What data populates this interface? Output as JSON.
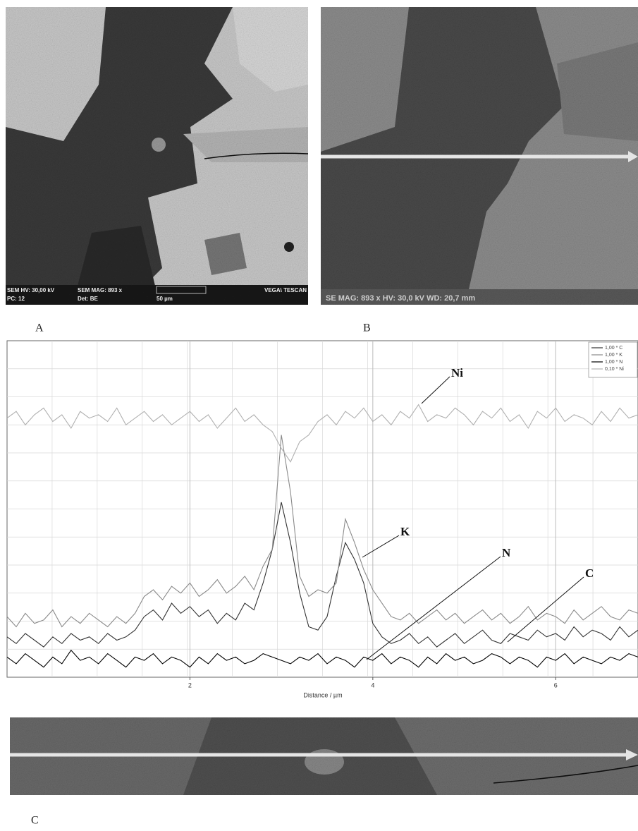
{
  "panels": {
    "a": {
      "label": "A",
      "info": [
        "SEM HV: 30,00 kV",
        "SEM MAG: 893 x",
        "VEGA\\ TESCAN",
        "PC: 12",
        "Det: BE",
        "50 µm"
      ]
    },
    "b": {
      "label": "B",
      "info": [
        "SE MAG: 893 x HV: 30,0 kV WD: 20,7 mm"
      ]
    },
    "c": {
      "label": "C"
    }
  },
  "chart_data": {
    "type": "line",
    "x_label": "Distance / µm",
    "xlim": [
      0,
      6.9
    ],
    "xticks": [
      2,
      4,
      6
    ],
    "ylim": [
      0,
      100
    ],
    "grid": true,
    "legend": "top-right",
    "annotations": [
      "Ni",
      "K",
      "N",
      "C"
    ],
    "x": [
      0,
      0.1,
      0.2,
      0.3,
      0.4,
      0.5,
      0.6,
      0.7,
      0.8,
      0.9,
      1,
      1.1,
      1.2,
      1.3,
      1.4,
      1.5,
      1.6,
      1.7,
      1.8,
      1.9,
      2,
      2.1,
      2.2,
      2.3,
      2.4,
      2.5,
      2.6,
      2.7,
      2.8,
      2.9,
      3,
      3.1,
      3.2,
      3.3,
      3.4,
      3.5,
      3.6,
      3.7,
      3.8,
      3.9,
      4,
      4.1,
      4.2,
      4.3,
      4.4,
      4.5,
      4.6,
      4.7,
      4.8,
      4.9,
      5,
      5.1,
      5.2,
      5.3,
      5.4,
      5.5,
      5.6,
      5.7,
      5.8,
      5.9,
      6,
      6.1,
      6.2,
      6.3,
      6.4,
      6.5,
      6.6,
      6.7,
      6.8,
      6.9
    ],
    "series": [
      {
        "name": "1,00 * C",
        "color": "#333333",
        "values": [
          12,
          10,
          13,
          11,
          9,
          12,
          10,
          13,
          11,
          12,
          10,
          13,
          11,
          12,
          14,
          18,
          20,
          17,
          22,
          19,
          21,
          18,
          20,
          16,
          19,
          17,
          22,
          20,
          28,
          38,
          52,
          40,
          25,
          15,
          14,
          18,
          30,
          40,
          35,
          28,
          16,
          12,
          10,
          11,
          13,
          10,
          12,
          9,
          11,
          13,
          10,
          12,
          14,
          11,
          10,
          13,
          12,
          11,
          14,
          12,
          13,
          11,
          15,
          12,
          14,
          13,
          11,
          15,
          12,
          14
        ]
      },
      {
        "name": "1,00 * K",
        "color": "#8a8a8a",
        "values": [
          18,
          15,
          19,
          16,
          17,
          20,
          15,
          18,
          16,
          19,
          17,
          15,
          18,
          16,
          19,
          24,
          26,
          23,
          27,
          25,
          28,
          24,
          26,
          29,
          25,
          27,
          30,
          26,
          33,
          38,
          72,
          55,
          30,
          24,
          26,
          25,
          28,
          47,
          40,
          32,
          26,
          22,
          18,
          17,
          19,
          16,
          18,
          20,
          17,
          19,
          16,
          18,
          20,
          17,
          19,
          16,
          18,
          21,
          17,
          19,
          18,
          16,
          20,
          17,
          19,
          21,
          18,
          17,
          20,
          19
        ]
      },
      {
        "name": "1,00 * N",
        "color": "#000000",
        "values": [
          6,
          4,
          7,
          5,
          3,
          6,
          4,
          8,
          5,
          6,
          4,
          7,
          5,
          3,
          6,
          5,
          7,
          4,
          6,
          5,
          3,
          6,
          4,
          7,
          5,
          6,
          4,
          5,
          7,
          6,
          5,
          4,
          6,
          5,
          7,
          4,
          6,
          5,
          3,
          6,
          5,
          7,
          4,
          6,
          5,
          3,
          6,
          4,
          7,
          5,
          6,
          4,
          5,
          7,
          6,
          4,
          6,
          5,
          3,
          6,
          5,
          7,
          4,
          6,
          5,
          4,
          6,
          5,
          7,
          6
        ]
      },
      {
        "name": "0,10 * Ni",
        "color": "#b0b0b0",
        "values": [
          77,
          79,
          75,
          78,
          80,
          76,
          78,
          74,
          79,
          77,
          78,
          76,
          80,
          75,
          77,
          79,
          76,
          78,
          75,
          77,
          79,
          76,
          78,
          74,
          77,
          80,
          76,
          78,
          75,
          73,
          68,
          64,
          70,
          72,
          76,
          78,
          75,
          79,
          77,
          80,
          76,
          78,
          75,
          79,
          77,
          81,
          76,
          78,
          77,
          80,
          78,
          75,
          79,
          77,
          80,
          76,
          78,
          74,
          79,
          77,
          80,
          76,
          78,
          77,
          75,
          79,
          76,
          80,
          77,
          78
        ]
      }
    ]
  }
}
